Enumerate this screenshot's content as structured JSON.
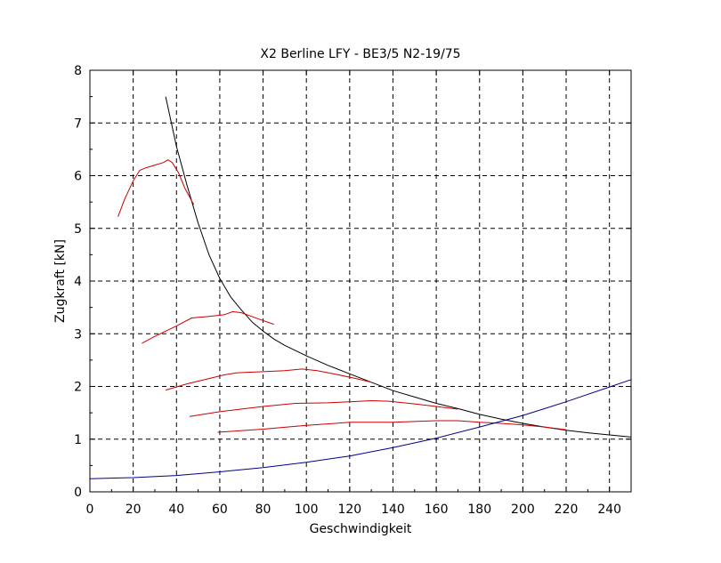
{
  "chart_data": {
    "type": "line",
    "title": "X2 Berline LFY - BE3/5 N2-19/75",
    "xlabel": "Geschwindigkeit",
    "ylabel": "Zugkraft [kN]",
    "xlim": [
      0,
      250
    ],
    "ylim": [
      0,
      8
    ],
    "xticks": [
      0,
      20,
      40,
      60,
      80,
      100,
      120,
      140,
      160,
      180,
      200,
      220,
      240
    ],
    "yticks": [
      0,
      1,
      2,
      3,
      4,
      5,
      6,
      7,
      8
    ],
    "grid": true,
    "legend": "none",
    "colors": {
      "envelope": "#000000",
      "gears": "#cc0000",
      "resistance": "#00008b"
    },
    "series": [
      {
        "kind": "envelope",
        "color": "#000000",
        "points": [
          [
            35,
            7.5
          ],
          [
            40,
            6.55
          ],
          [
            45,
            5.8
          ],
          [
            50,
            5.1
          ],
          [
            55,
            4.5
          ],
          [
            60,
            4.05
          ],
          [
            65,
            3.7
          ],
          [
            70,
            3.45
          ],
          [
            75,
            3.22
          ],
          [
            80,
            3.05
          ],
          [
            85,
            2.9
          ],
          [
            90,
            2.78
          ],
          [
            100,
            2.58
          ],
          [
            110,
            2.4
          ],
          [
            120,
            2.24
          ],
          [
            130,
            2.08
          ],
          [
            140,
            1.92
          ],
          [
            150,
            1.8
          ],
          [
            160,
            1.68
          ],
          [
            170,
            1.58
          ],
          [
            180,
            1.47
          ],
          [
            190,
            1.38
          ],
          [
            200,
            1.3
          ],
          [
            210,
            1.23
          ],
          [
            220,
            1.17
          ],
          [
            230,
            1.12
          ],
          [
            240,
            1.08
          ],
          [
            250,
            1.04
          ]
        ]
      },
      {
        "kind": "gear",
        "color": "#cc0000",
        "points": [
          [
            13,
            5.22
          ],
          [
            16,
            5.55
          ],
          [
            20,
            5.9
          ],
          [
            23,
            6.1
          ],
          [
            26,
            6.15
          ],
          [
            30,
            6.2
          ],
          [
            34,
            6.25
          ],
          [
            36,
            6.3
          ],
          [
            38,
            6.25
          ],
          [
            41,
            6.05
          ],
          [
            44,
            5.75
          ],
          [
            48,
            5.45
          ]
        ]
      },
      {
        "kind": "gear",
        "color": "#cc0000",
        "points": [
          [
            24,
            2.82
          ],
          [
            30,
            2.95
          ],
          [
            40,
            3.15
          ],
          [
            47,
            3.3
          ],
          [
            55,
            3.33
          ],
          [
            62,
            3.36
          ],
          [
            66,
            3.42
          ],
          [
            70,
            3.4
          ],
          [
            78,
            3.28
          ],
          [
            85,
            3.18
          ]
        ]
      },
      {
        "kind": "gear",
        "color": "#cc0000",
        "points": [
          [
            35,
            1.93
          ],
          [
            45,
            2.05
          ],
          [
            55,
            2.15
          ],
          [
            62,
            2.22
          ],
          [
            68,
            2.26
          ],
          [
            80,
            2.28
          ],
          [
            90,
            2.3
          ],
          [
            98,
            2.33
          ],
          [
            105,
            2.3
          ],
          [
            115,
            2.22
          ],
          [
            125,
            2.13
          ],
          [
            130,
            2.08
          ]
        ]
      },
      {
        "kind": "gear",
        "color": "#cc0000",
        "points": [
          [
            46,
            1.43
          ],
          [
            60,
            1.52
          ],
          [
            80,
            1.62
          ],
          [
            95,
            1.68
          ],
          [
            110,
            1.69
          ],
          [
            120,
            1.71
          ],
          [
            130,
            1.73
          ],
          [
            138,
            1.72
          ],
          [
            150,
            1.67
          ],
          [
            160,
            1.62
          ],
          [
            170,
            1.57
          ]
        ]
      },
      {
        "kind": "gear",
        "color": "#cc0000",
        "points": [
          [
            59,
            1.13
          ],
          [
            80,
            1.19
          ],
          [
            100,
            1.26
          ],
          [
            120,
            1.32
          ],
          [
            140,
            1.32
          ],
          [
            160,
            1.35
          ],
          [
            170,
            1.35
          ],
          [
            180,
            1.32
          ],
          [
            190,
            1.3
          ],
          [
            200,
            1.27
          ],
          [
            210,
            1.23
          ],
          [
            220,
            1.18
          ]
        ]
      },
      {
        "kind": "resistance",
        "color": "#00008b",
        "points": [
          [
            0,
            0.25
          ],
          [
            20,
            0.27
          ],
          [
            40,
            0.31
          ],
          [
            60,
            0.38
          ],
          [
            80,
            0.46
          ],
          [
            100,
            0.56
          ],
          [
            120,
            0.68
          ],
          [
            140,
            0.84
          ],
          [
            160,
            1.02
          ],
          [
            180,
            1.23
          ],
          [
            200,
            1.45
          ],
          [
            220,
            1.71
          ],
          [
            240,
            1.99
          ],
          [
            250,
            2.13
          ]
        ]
      }
    ]
  }
}
